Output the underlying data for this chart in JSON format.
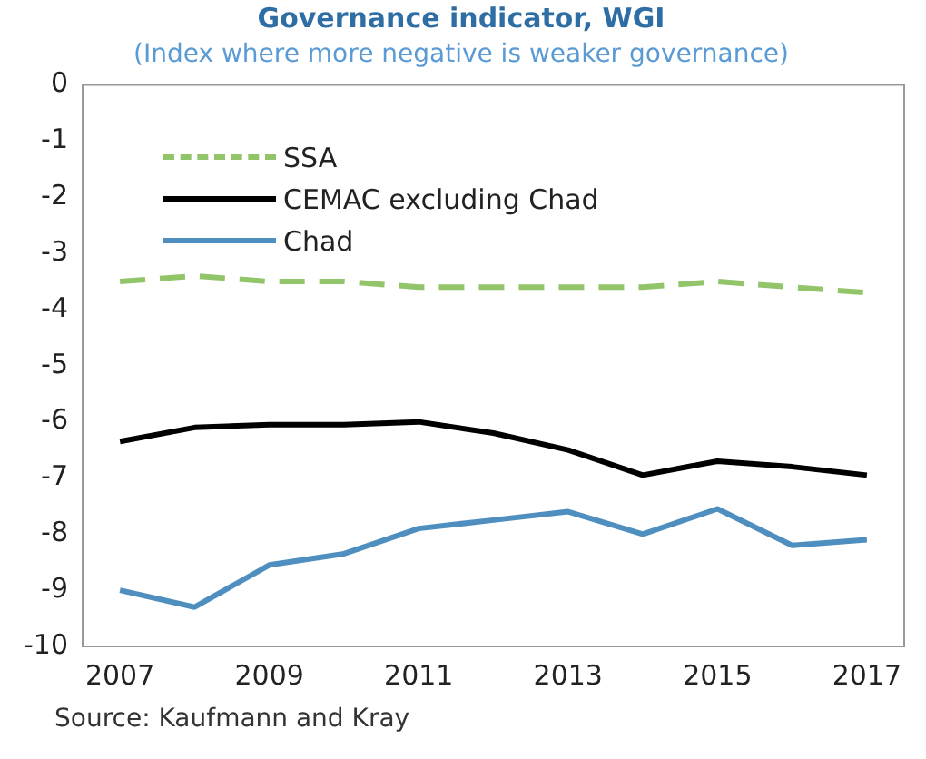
{
  "chart_data": {
    "type": "line",
    "title": "Governance indicator, WGI",
    "subtitle": "(Index where more negative is weaker governance)",
    "categories": [
      "2007",
      null,
      "2009",
      null,
      "2011",
      null,
      "2013",
      null,
      "2015",
      null,
      "2017"
    ],
    "series": [
      {
        "name": "SSA",
        "color": "#92c46a",
        "line_style": "dashed",
        "values": [
          -3.5,
          -3.4,
          -3.5,
          -3.5,
          -3.6,
          -3.6,
          -3.6,
          -3.6,
          -3.5,
          -3.6,
          -3.7
        ]
      },
      {
        "name": "CEMAC excluding Chad",
        "color": "#000000",
        "line_style": "solid",
        "values": [
          -6.35,
          -6.1,
          -6.05,
          -6.05,
          -6.0,
          -6.2,
          -6.5,
          -6.95,
          -6.7,
          -6.8,
          -6.95
        ]
      },
      {
        "name": "Chad",
        "color": "#4f8fc0",
        "line_style": "solid",
        "values": [
          -9.0,
          -9.3,
          -8.55,
          -8.35,
          -7.9,
          -7.75,
          -7.6,
          -8.0,
          -7.55,
          -8.2,
          -8.1
        ]
      }
    ],
    "ylim": [
      -10,
      0
    ],
    "yticks": [
      -10,
      -9,
      -8,
      -7,
      -6,
      -5,
      -4,
      -3,
      -2,
      -1,
      0
    ],
    "grid": false,
    "legend": "top left",
    "marker": "none",
    "annotations": [
      "Source: Kaufmann and Kray"
    ]
  }
}
